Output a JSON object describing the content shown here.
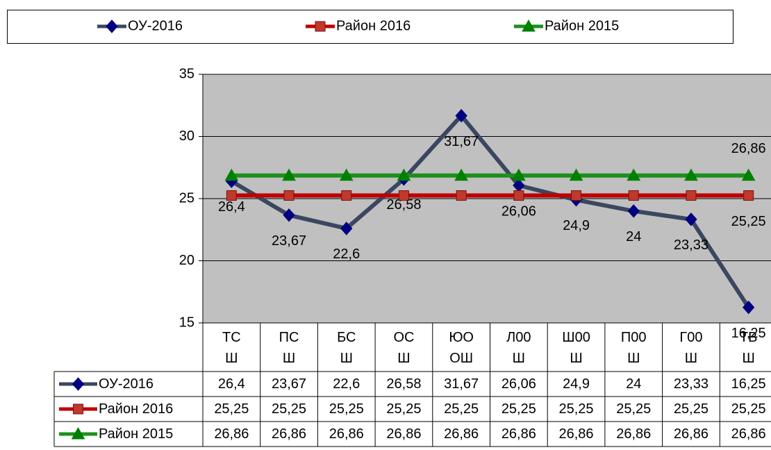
{
  "chart_data": {
    "type": "line",
    "categories": [
      "ТСШ",
      "ПСШ",
      "БСШ",
      "ОСШ",
      "ЮООШ",
      "Л00Ш",
      "Ш00Ш",
      "П00Ш",
      "Г00Ш",
      "ТВШ"
    ],
    "series": [
      {
        "name": "ОУ-2016",
        "color": "#3b4760",
        "marker": "diamond",
        "marker_color": "#000080",
        "values": [
          26.4,
          23.67,
          22.6,
          26.58,
          31.67,
          26.06,
          24.9,
          24,
          23.33,
          16.25
        ],
        "value_labels": [
          "26,4",
          "23,67",
          "22,6",
          "26,58",
          "31,67",
          "26,06",
          "24,9",
          "24",
          "23,33",
          "16,25"
        ],
        "data_labels": "all",
        "label_position": "below"
      },
      {
        "name": "Район 2016",
        "color": "#c00000",
        "marker": "square",
        "marker_color": "#c0392b",
        "values": [
          25.25,
          25.25,
          25.25,
          25.25,
          25.25,
          25.25,
          25.25,
          25.25,
          25.25,
          25.25
        ],
        "value_labels": [
          "25,25",
          "25,25",
          "25,25",
          "25,25",
          "25,25",
          "25,25",
          "25,25",
          "25,25",
          "25,25",
          "25,25"
        ],
        "data_labels": "last",
        "label_position": "below"
      },
      {
        "name": "Район 2015",
        "color": "#1e8f1e",
        "marker": "triangle",
        "marker_color": "#008000",
        "values": [
          26.86,
          26.86,
          26.86,
          26.86,
          26.86,
          26.86,
          26.86,
          26.86,
          26.86,
          26.86
        ],
        "value_labels": [
          "26,86",
          "26,86",
          "26,86",
          "26,86",
          "26,86",
          "26,86",
          "26,86",
          "26,86",
          "26,86",
          "26,86"
        ],
        "data_labels": "last",
        "label_position": "above"
      }
    ],
    "ylim": [
      15,
      35
    ],
    "yticks": [
      15,
      20,
      25,
      30,
      35
    ],
    "grid": true,
    "legend": "top",
    "data_table": true
  }
}
